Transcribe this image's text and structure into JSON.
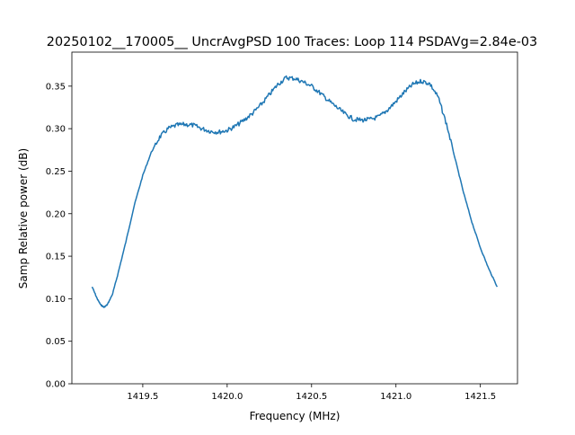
{
  "chart_data": {
    "type": "line",
    "title": "20250102__170005__  UncrAvgPSD 100 Traces: Loop 114 PSDAVg=2.84e-03",
    "xlabel": "Frequency (MHz)",
    "ylabel": "Samp Relative power (dB)",
    "xlim": [
      1419.08,
      1421.72
    ],
    "ylim": [
      0.0,
      0.39
    ],
    "x_ticks": [
      1419.5,
      1420.0,
      1420.5,
      1421.0,
      1421.5
    ],
    "x_tick_labels": [
      "1419.5",
      "1420.0",
      "1420.5",
      "1421.0",
      "1421.5"
    ],
    "y_ticks": [
      0.0,
      0.05,
      0.1,
      0.15,
      0.2,
      0.25,
      0.3,
      0.35
    ],
    "y_tick_labels": [
      "0.00",
      "0.05",
      "0.10",
      "0.15",
      "0.20",
      "0.25",
      "0.30",
      "0.35"
    ],
    "grid": false,
    "series_color": "#1f77b4",
    "series": [
      {
        "x": [
          1419.2,
          1419.23,
          1419.25,
          1419.27,
          1419.29,
          1419.32,
          1419.35,
          1419.4,
          1419.45,
          1419.5,
          1419.55,
          1419.6,
          1419.65,
          1419.7,
          1419.75,
          1419.8,
          1419.85,
          1419.9,
          1419.95,
          1420.0,
          1420.05,
          1420.1,
          1420.15,
          1420.2,
          1420.25,
          1420.3,
          1420.35,
          1420.4,
          1420.45,
          1420.5,
          1420.55,
          1420.6,
          1420.65,
          1420.7,
          1420.75,
          1420.8,
          1420.85,
          1420.9,
          1420.95,
          1421.0,
          1421.05,
          1421.1,
          1421.15,
          1421.2,
          1421.25,
          1421.3,
          1421.35,
          1421.4,
          1421.45,
          1421.5,
          1421.55,
          1421.6
        ],
        "y": [
          0.114,
          0.1,
          0.093,
          0.09,
          0.093,
          0.105,
          0.127,
          0.167,
          0.21,
          0.245,
          0.272,
          0.29,
          0.3,
          0.304,
          0.305,
          0.304,
          0.3,
          0.297,
          0.296,
          0.298,
          0.303,
          0.31,
          0.318,
          0.328,
          0.34,
          0.352,
          0.36,
          0.359,
          0.355,
          0.35,
          0.342,
          0.333,
          0.325,
          0.317,
          0.311,
          0.31,
          0.311,
          0.314,
          0.322,
          0.332,
          0.343,
          0.352,
          0.356,
          0.353,
          0.337,
          0.305,
          0.265,
          0.225,
          0.19,
          0.16,
          0.135,
          0.114
        ]
      }
    ]
  }
}
